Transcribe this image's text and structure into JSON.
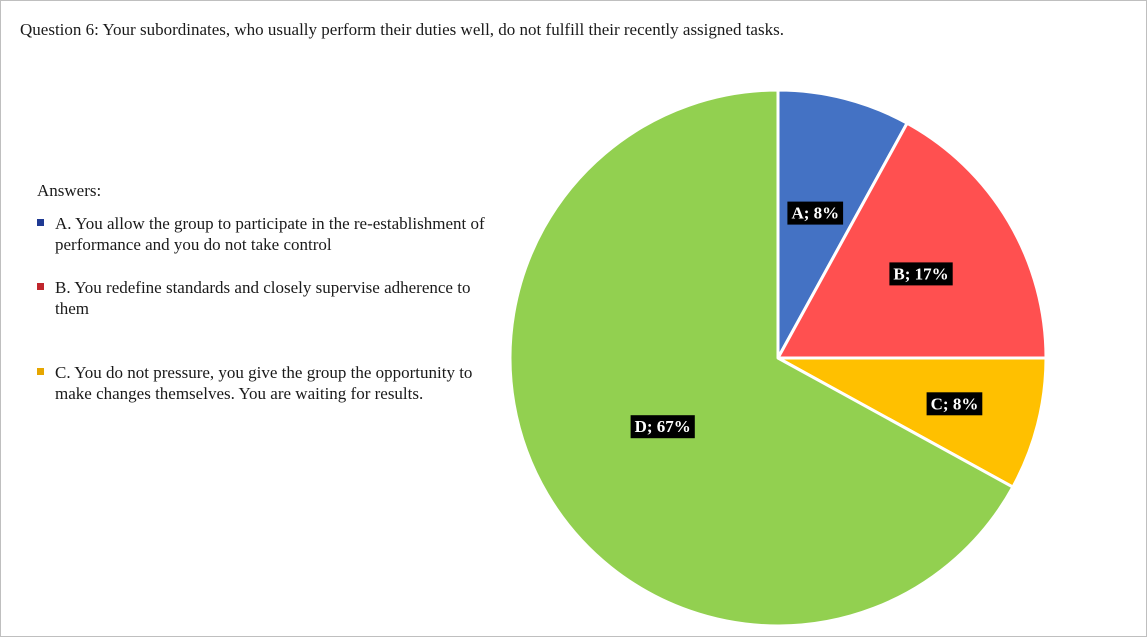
{
  "question": "Question 6: Your subordinates, who usually perform their duties well, do not fulfill their recently assigned tasks.",
  "legend": {
    "title": "Answers:",
    "items": [
      {
        "text": "A. You allow the group to participate in the re-establishment of performance and you do not take control",
        "color": "#1f3a93"
      },
      {
        "text": "B. You redefine standards and closely supervise adherence to them",
        "color": "#c0262d"
      },
      {
        "text": "C. You do not pressure, you give the group the opportunity to make changes themselves. You are waiting for results.",
        "color": "#e6a600"
      }
    ]
  },
  "chart_data": {
    "type": "pie",
    "start_angle": "12 o'clock, clockwise",
    "slices": [
      {
        "category": "A",
        "value": 8,
        "label": "A; 8%",
        "color": "#4472c4"
      },
      {
        "category": "B",
        "value": 17,
        "label": "B; 17%",
        "color": "#ff5050"
      },
      {
        "category": "C",
        "value": 8,
        "label": "C; 8%",
        "color": "#ffc000"
      },
      {
        "category": "D",
        "value": 67,
        "label": "D; 67%",
        "color": "#92d050"
      }
    ]
  }
}
